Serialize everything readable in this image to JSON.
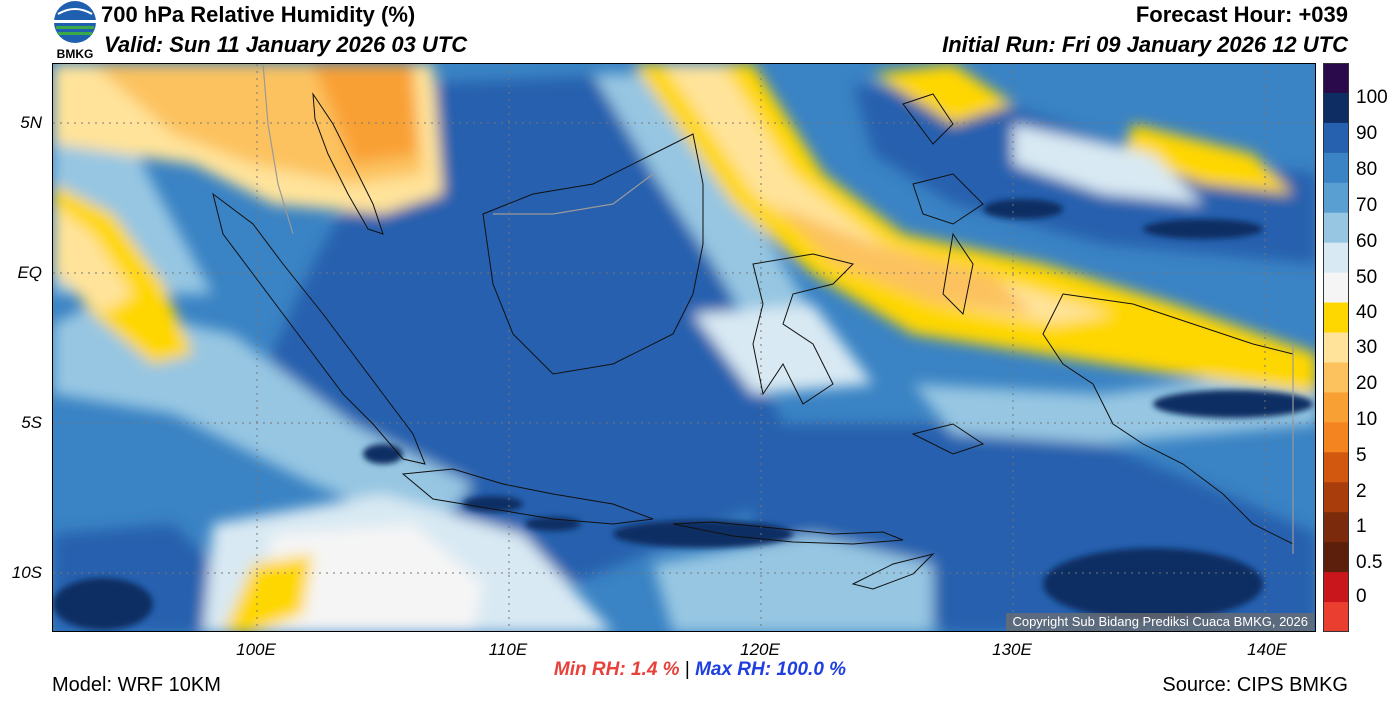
{
  "header": {
    "title": "700 hPa Relative Humidity (%)",
    "valid": "Valid: Sun 11 January 2026 03 UTC",
    "forecast_hour": "Forecast Hour: +039",
    "initial_run": "Initial Run: Fri 09 January 2026 12 UTC",
    "logo_text": "BMKG"
  },
  "map": {
    "lat_labels": [
      "5N",
      "EQ",
      "5S",
      "10S"
    ],
    "lon_labels": [
      "100E",
      "110E",
      "120E",
      "130E",
      "140E"
    ],
    "copyright": "Copyright Sub Bidang Prediksi Cuaca BMKG, 2026"
  },
  "colorbar": {
    "labels": [
      "100",
      "90",
      "80",
      "70",
      "60",
      "50",
      "40",
      "30",
      "20",
      "10",
      "5",
      "2",
      "1",
      "0.5",
      "0"
    ],
    "colors": [
      "#2a0a4a",
      "#0d2d63",
      "#2561ae",
      "#3a83c4",
      "#5a9fd2",
      "#96c6e2",
      "#d8e9f3",
      "#f5f5f5",
      "#ffd700",
      "#ffe39a",
      "#fcc25e",
      "#f9a035",
      "#f38420",
      "#d3580f",
      "#a93d0b",
      "#7b2b0b",
      "#5c1f0b",
      "#c9161d",
      "#ea3e31"
    ]
  },
  "stats": {
    "min_label": "Min RH:",
    "min_value": "1.4 %",
    "separator": "|",
    "max_label": "Max RH: 100.0 %"
  },
  "footer": {
    "model": "Model: WRF 10KM",
    "source": "Source: CIPS BMKG"
  }
}
